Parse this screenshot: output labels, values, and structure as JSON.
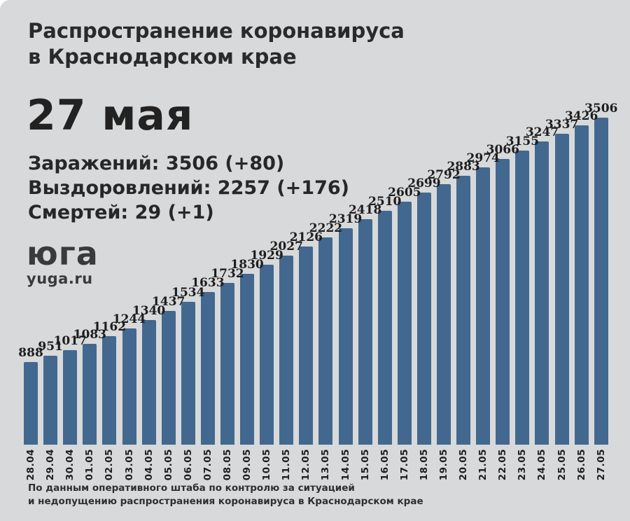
{
  "page": {
    "background_color": "#d8d9da",
    "frame_color": "#ffffff"
  },
  "header": {
    "title_line1": "Распространение коронавируса",
    "title_line2": "в Краснодарском крае",
    "date": "27 мая",
    "stats": [
      {
        "label": "Заражений:",
        "value": "3506 (+80)"
      },
      {
        "label": "Выздоровлений:",
        "value": "2257 (+176)"
      },
      {
        "label": "Смертей:",
        "value": "29 (+1)"
      }
    ]
  },
  "logo": {
    "glyph": "юга",
    "domain": "yuga.ru"
  },
  "chart_data": {
    "type": "bar",
    "title": "Распространение коронавируса в Краснодарском крае — заражения по дням (нарастающим итогом)",
    "xlabel": "",
    "ylabel": "",
    "ylim": [
      0,
      3506
    ],
    "grid": false,
    "legend": false,
    "value_labels": true,
    "bar_color": "#42688f",
    "label_color": "#1d1d1d",
    "categories": [
      "28.04",
      "29.04",
      "30.04",
      "01.05",
      "02.05",
      "03.05",
      "04.05",
      "05.05",
      "06.05",
      "07.05",
      "08.05",
      "09.05",
      "10.05",
      "11.05",
      "12.05",
      "13.05",
      "14.05",
      "15.05",
      "16.05",
      "17.05",
      "18.05",
      "19.05",
      "20.05",
      "21.05",
      "22.05",
      "23.05",
      "24.05",
      "25.05",
      "26.05",
      "27.05"
    ],
    "values": [
      888,
      951,
      1017,
      1083,
      1162,
      1244,
      1340,
      1437,
      1534,
      1633,
      1732,
      1830,
      1929,
      2027,
      2126,
      2222,
      2319,
      2418,
      2510,
      2605,
      2699,
      2792,
      2883,
      2974,
      3066,
      3155,
      3247,
      3337,
      3426,
      3506
    ]
  },
  "footer": {
    "line1": "По данным оперативного штаба по контролю за ситуацией",
    "line2": "и недопущению распространения коронавируса в Краснодарском крае"
  }
}
